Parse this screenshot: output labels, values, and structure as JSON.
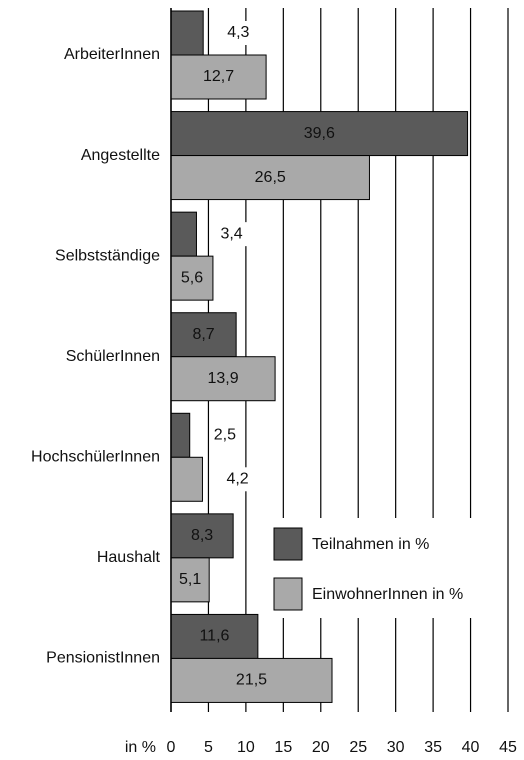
{
  "chart_data": {
    "type": "hbar",
    "categories": [
      "ArbeiterInnen",
      "Angestellte",
      "Selbstständige",
      "SchülerInnen",
      "HochschülerInnen",
      "Haushalt",
      "PensionistInnen"
    ],
    "series": [
      {
        "name": "Teilnahmen in %",
        "color": "#5a5a5a",
        "values": [
          4.3,
          39.6,
          3.4,
          8.7,
          2.5,
          8.3,
          11.6
        ],
        "value_labels": [
          "4,3",
          "39,6",
          "3,4",
          "8,7",
          "2,5",
          "8,3",
          "11,6"
        ]
      },
      {
        "name": "EinwohnerInnen in %",
        "color": "#a9a9a9",
        "values": [
          12.7,
          26.5,
          5.6,
          13.9,
          4.2,
          5.1,
          21.5
        ],
        "value_labels": [
          "12,7",
          "26,5",
          "5,6",
          "13,9",
          "4,2",
          "5,1",
          "21,5"
        ]
      }
    ],
    "x_label": "in %",
    "xlim": [
      0,
      45
    ],
    "xticks": [
      0,
      5,
      10,
      15,
      20,
      25,
      30,
      35,
      40,
      45
    ],
    "grid": true,
    "legend": "lower right"
  }
}
